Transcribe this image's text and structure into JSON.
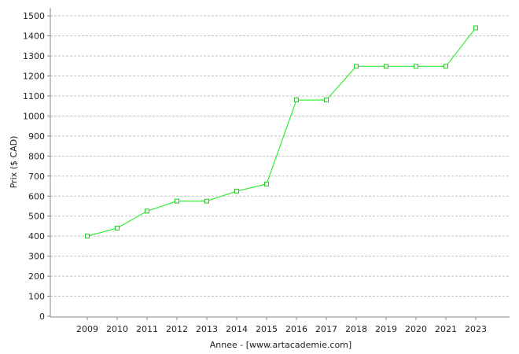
{
  "chart_data": {
    "type": "line",
    "title": "",
    "xlabel": "Annee - [www.artacademie.com]",
    "ylabel": "Prix ($ CAD)",
    "categories": [
      "2009",
      "2010",
      "2011",
      "2012",
      "2013",
      "2014",
      "2015",
      "2016",
      "2017",
      "2018",
      "2019",
      "2020",
      "2021",
      "2023"
    ],
    "series": [
      {
        "values": [
          400,
          440,
          525,
          575,
          575,
          625,
          660,
          1080,
          1080,
          1248,
          1248,
          1248,
          1248,
          1440
        ]
      }
    ],
    "yticks": [
      0,
      100,
      200,
      300,
      400,
      500,
      600,
      700,
      800,
      900,
      1000,
      1100,
      1200,
      1300,
      1400,
      1500
    ],
    "ylim": [
      0,
      1540
    ],
    "grid": "horizontal dashed",
    "legend": "none",
    "colors": {
      "line": "#33ee33",
      "marker": "#22cc22"
    }
  }
}
